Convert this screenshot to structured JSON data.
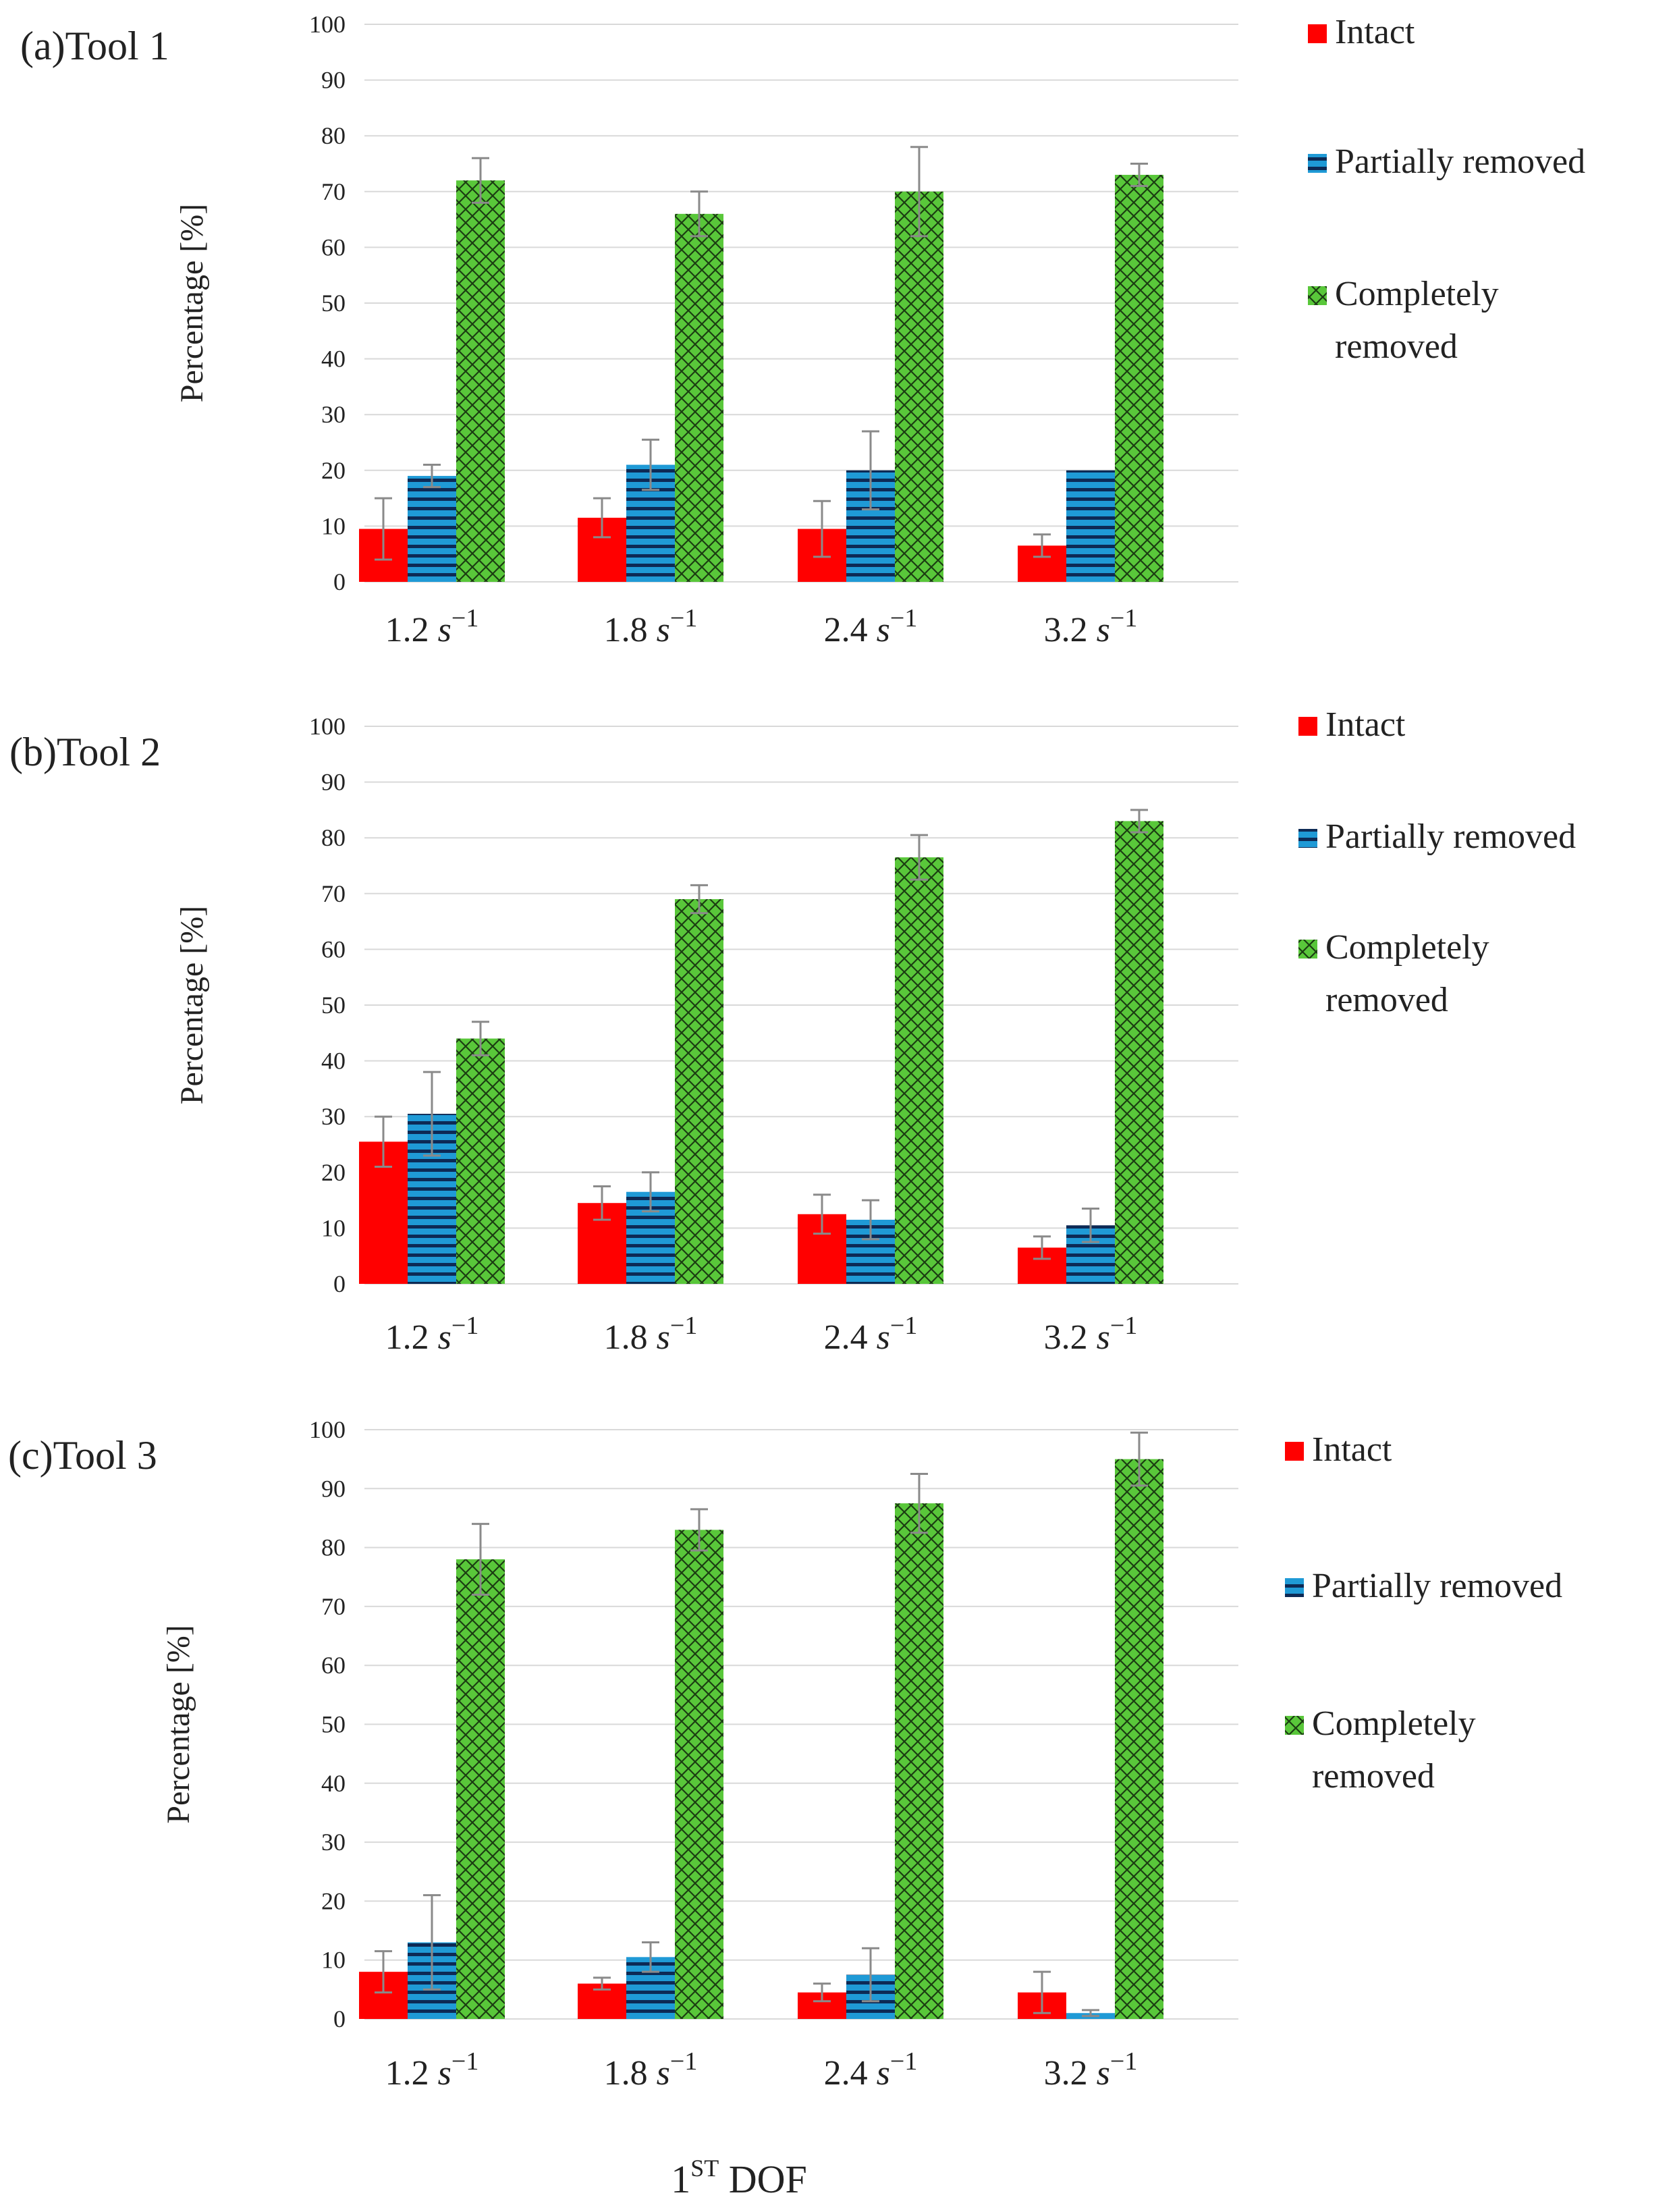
{
  "figure": {
    "x_axis_title": "1ST DOF",
    "x_axis_title_main": "1",
    "x_axis_title_sup": "ST",
    "x_axis_title_rest": " DOF"
  },
  "colors": {
    "intact": "#ff0000",
    "partially_removed": "#1f9ad6",
    "completely_removed": "#59c73a",
    "grid": "#d9d9d9",
    "error_bar": "#8a8a8a"
  },
  "chart_data": [
    {
      "type": "bar",
      "title": "(a)Tool 1",
      "ylabel": "Percentage  [%]",
      "ylim": [
        0,
        100
      ],
      "yticks": [
        0,
        10,
        20,
        30,
        40,
        50,
        60,
        70,
        80,
        90,
        100
      ],
      "categories": [
        "1.2",
        "1.8",
        "2.4",
        "3.2"
      ],
      "category_unit": "s",
      "category_unit_exponent": "−1",
      "grid": true,
      "legend_position": "right",
      "series": [
        {
          "name": "Intact",
          "values": [
            9.5,
            11.5,
            9.5,
            6.5
          ],
          "errors": [
            5.5,
            3.5,
            5,
            2
          ]
        },
        {
          "name": "Partially removed",
          "values": [
            19,
            21,
            20,
            20
          ],
          "errors": [
            2,
            4.5,
            7,
            0
          ]
        },
        {
          "name": "Completely removed",
          "values": [
            72,
            66,
            70,
            73
          ],
          "errors": [
            4,
            4,
            8,
            2
          ]
        }
      ]
    },
    {
      "type": "bar",
      "title": "(b)Tool 2",
      "ylabel": "Percentage  [%]",
      "ylim": [
        0,
        100
      ],
      "yticks": [
        0,
        10,
        20,
        30,
        40,
        50,
        60,
        70,
        80,
        90,
        100
      ],
      "categories": [
        "1.2",
        "1.8",
        "2.4",
        "3.2"
      ],
      "category_unit": "s",
      "category_unit_exponent": "−1",
      "grid": true,
      "legend_position": "right",
      "series": [
        {
          "name": "Intact",
          "values": [
            25.5,
            14.5,
            12.5,
            6.5
          ],
          "errors": [
            4.5,
            3,
            3.5,
            2
          ]
        },
        {
          "name": "Partially removed",
          "values": [
            30.5,
            16.5,
            11.5,
            10.5
          ],
          "errors": [
            7.5,
            3.5,
            3.5,
            3
          ]
        },
        {
          "name": "Completely removed",
          "values": [
            44,
            69,
            76.5,
            83
          ],
          "errors": [
            3,
            2.5,
            4,
            2
          ]
        }
      ]
    },
    {
      "type": "bar",
      "title": "(c)Tool 3",
      "ylabel": "Percentage  [%]",
      "ylim": [
        0,
        100
      ],
      "yticks": [
        0,
        10,
        20,
        30,
        40,
        50,
        60,
        70,
        80,
        90,
        100
      ],
      "categories": [
        "1.2",
        "1.8",
        "2.4",
        "3.2"
      ],
      "category_unit": "s",
      "category_unit_exponent": "−1",
      "grid": true,
      "legend_position": "right",
      "series": [
        {
          "name": "Intact",
          "values": [
            8,
            6,
            4.5,
            4.5
          ],
          "errors": [
            3.5,
            1,
            1.5,
            3.5
          ]
        },
        {
          "name": "Partially removed",
          "values": [
            13,
            10.5,
            7.5,
            1
          ],
          "errors": [
            8,
            2.5,
            4.5,
            0.5
          ]
        },
        {
          "name": "Completely removed",
          "values": [
            78,
            83,
            87.5,
            95
          ],
          "errors": [
            6,
            3.5,
            5,
            4.5
          ]
        }
      ]
    }
  ]
}
